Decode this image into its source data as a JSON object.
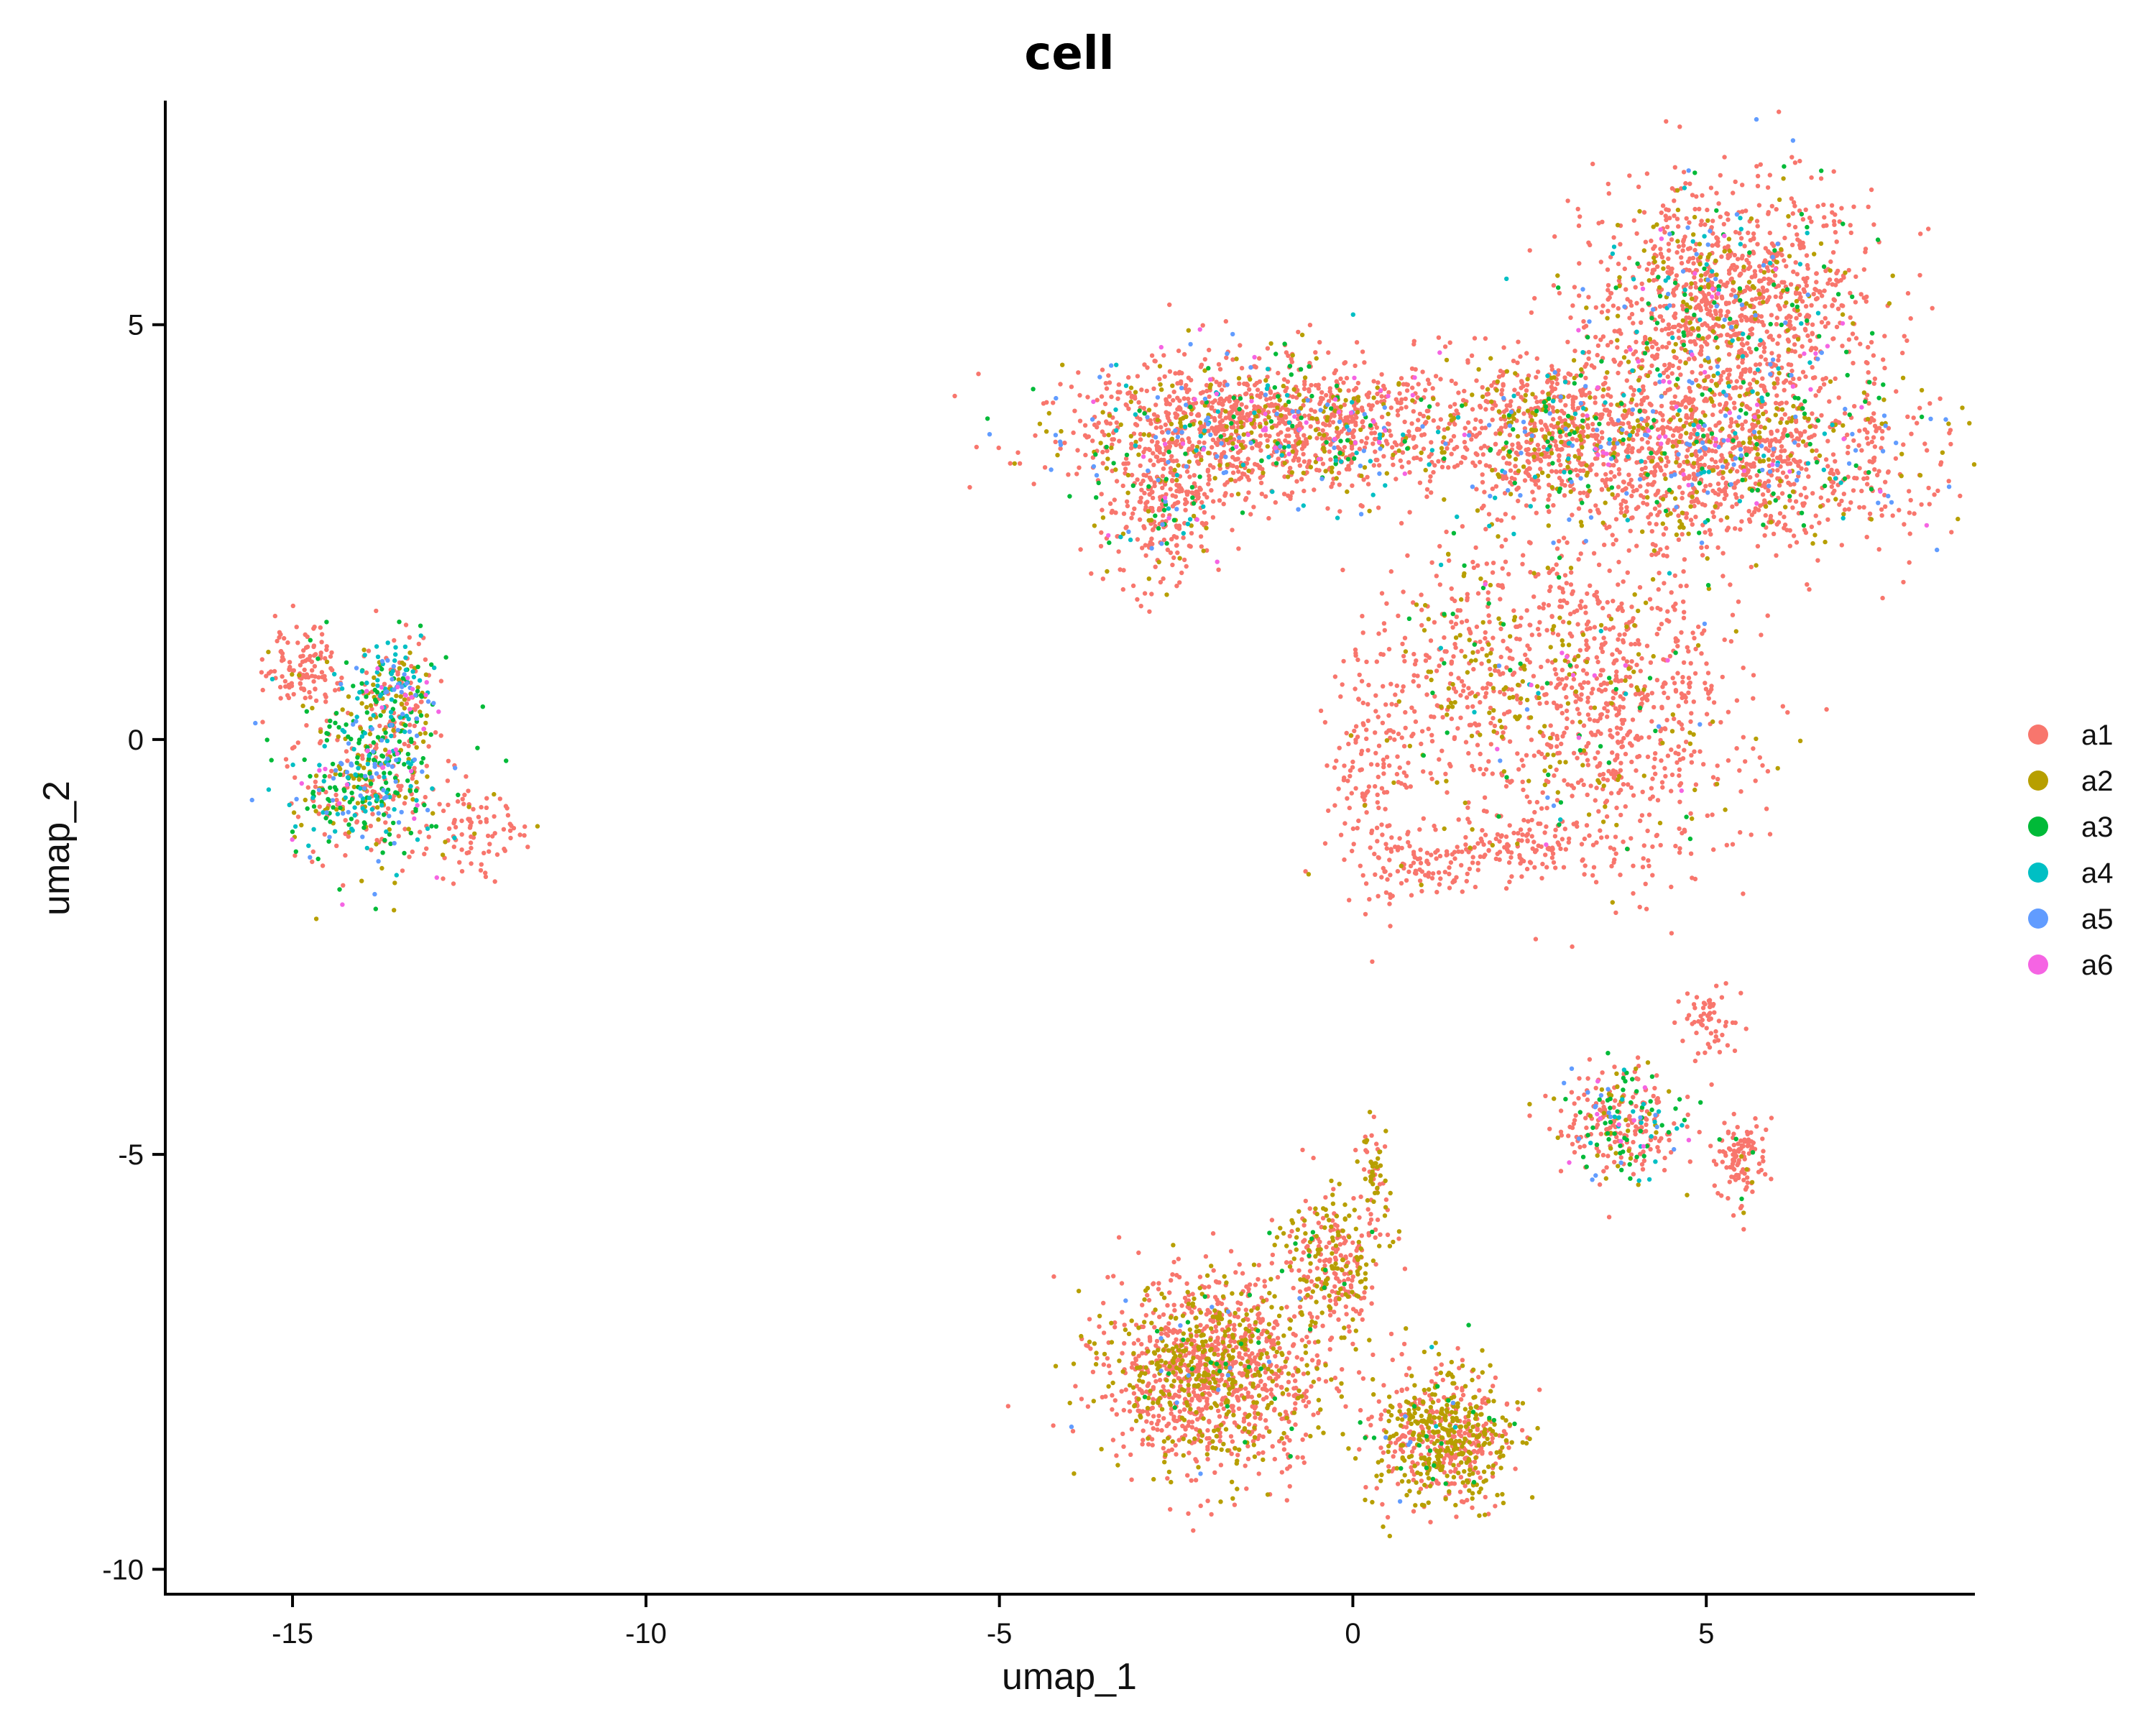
{
  "chart_data": {
    "type": "scatter",
    "title": "cell",
    "xlabel": "umap_1",
    "ylabel": "umap_2",
    "xlim": [
      -16.8,
      8.8
    ],
    "ylim": [
      -10.3,
      7.7
    ],
    "xticks": [
      -15,
      -10,
      -5,
      0,
      5
    ],
    "xtick_labels": [
      "-15",
      "-10",
      "-5",
      "0",
      "5"
    ],
    "yticks": [
      -10,
      -5,
      0,
      5
    ],
    "ytick_labels": [
      "-10",
      "-5",
      "0",
      "5"
    ],
    "grid": false,
    "legend_position": "right",
    "series": [
      {
        "name": "a1",
        "color": "#F8766D"
      },
      {
        "name": "a2",
        "color": "#B79F00"
      },
      {
        "name": "a3",
        "color": "#00BA38"
      },
      {
        "name": "a4",
        "color": "#00BFC4"
      },
      {
        "name": "a5",
        "color": "#619CFF"
      },
      {
        "name": "a6",
        "color": "#F564E3"
      }
    ],
    "clusters": [
      {
        "name": "top-left-band",
        "center": [
          -1.2,
          3.8
        ],
        "spread": [
          1.9,
          0.55
        ],
        "points": 1400,
        "mix": [
          0.72,
          0.12,
          0.05,
          0.03,
          0.05,
          0.03
        ]
      },
      {
        "name": "left-lobe",
        "center": [
          -2.7,
          2.8
        ],
        "spread": [
          0.6,
          0.6
        ],
        "points": 300,
        "mix": [
          0.8,
          0.08,
          0.04,
          0.02,
          0.04,
          0.02
        ]
      },
      {
        "name": "top-right-dome",
        "center": [
          5.3,
          5.2
        ],
        "spread": [
          1.3,
          1.0
        ],
        "points": 1300,
        "mix": [
          0.76,
          0.1,
          0.05,
          0.03,
          0.04,
          0.02
        ]
      },
      {
        "name": "right-band",
        "center": [
          5.0,
          3.4
        ],
        "spread": [
          2.2,
          0.7
        ],
        "points": 1400,
        "mix": [
          0.73,
          0.12,
          0.05,
          0.03,
          0.05,
          0.02
        ]
      },
      {
        "name": "center-band",
        "center": [
          2.8,
          3.8
        ],
        "spread": [
          1.0,
          0.55
        ],
        "points": 450,
        "mix": [
          0.72,
          0.16,
          0.05,
          0.02,
          0.03,
          0.02
        ]
      },
      {
        "name": "inner-right",
        "center": [
          3.6,
          0.5
        ],
        "spread": [
          1.3,
          1.3
        ],
        "points": 900,
        "mix": [
          0.82,
          0.12,
          0.03,
          0.01,
          0.01,
          0.01
        ]
      },
      {
        "name": "inner-mid",
        "center": [
          1.6,
          0.8
        ],
        "spread": [
          0.7,
          1.1
        ],
        "points": 250,
        "mix": [
          0.6,
          0.35,
          0.03,
          0.01,
          0.01,
          0.0
        ]
      },
      {
        "name": "ring-left",
        "center": [
          0.3,
          -0.3
        ],
        "spread": [
          0.4,
          1.1
        ],
        "points": 180,
        "mix": [
          0.95,
          0.05,
          0.0,
          0.0,
          0.0,
          0.0
        ]
      },
      {
        "name": "ring-bottom",
        "center": [
          2.3,
          -1.3
        ],
        "spread": [
          1.1,
          0.25
        ],
        "points": 150,
        "mix": [
          0.95,
          0.05,
          0.0,
          0.0,
          0.0,
          0.0
        ]
      },
      {
        "name": "ring-feet",
        "center": [
          1.0,
          -1.6
        ],
        "spread": [
          0.5,
          0.2
        ],
        "points": 60,
        "mix": [
          1.0,
          0.0,
          0.0,
          0.0,
          0.0,
          0.0
        ]
      },
      {
        "name": "left-island-core",
        "center": [
          -14.0,
          -0.5
        ],
        "spread": [
          0.7,
          0.7
        ],
        "points": 500,
        "mix": [
          0.3,
          0.15,
          0.25,
          0.15,
          0.12,
          0.03
        ]
      },
      {
        "name": "left-island-top",
        "center": [
          -13.5,
          0.6
        ],
        "spread": [
          0.35,
          0.45
        ],
        "points": 220,
        "mix": [
          0.3,
          0.2,
          0.15,
          0.2,
          0.1,
          0.05
        ]
      },
      {
        "name": "left-island-cap",
        "center": [
          -14.9,
          0.9
        ],
        "spread": [
          0.35,
          0.35
        ],
        "points": 120,
        "mix": [
          0.95,
          0.03,
          0.02,
          0.0,
          0.0,
          0.0
        ]
      },
      {
        "name": "left-island-tail",
        "center": [
          -12.5,
          -1.1
        ],
        "spread": [
          0.45,
          0.35
        ],
        "points": 90,
        "mix": [
          0.95,
          0.05,
          0.0,
          0.0,
          0.0,
          0.0
        ]
      },
      {
        "name": "bottom-left-mass",
        "center": [
          -2.0,
          -7.6
        ],
        "spread": [
          1.05,
          0.75
        ],
        "points": 1300,
        "mix": [
          0.67,
          0.3,
          0.02,
          0.0,
          0.01,
          0.0
        ]
      },
      {
        "name": "bottom-neck",
        "center": [
          -0.3,
          -6.3
        ],
        "spread": [
          0.5,
          0.6
        ],
        "points": 300,
        "mix": [
          0.6,
          0.38,
          0.02,
          0.0,
          0.0,
          0.0
        ]
      },
      {
        "name": "bottom-spike",
        "center": [
          0.3,
          -5.2
        ],
        "spread": [
          0.12,
          0.4
        ],
        "points": 60,
        "mix": [
          0.4,
          0.6,
          0.0,
          0.0,
          0.0,
          0.0
        ]
      },
      {
        "name": "bottom-right-mass",
        "center": [
          1.3,
          -8.4
        ],
        "spread": [
          0.65,
          0.55
        ],
        "points": 650,
        "mix": [
          0.5,
          0.45,
          0.03,
          0.01,
          0.01,
          0.0
        ]
      },
      {
        "name": "small-right-core",
        "center": [
          3.8,
          -4.6
        ],
        "spread": [
          0.6,
          0.45
        ],
        "points": 300,
        "mix": [
          0.6,
          0.1,
          0.12,
          0.1,
          0.05,
          0.03
        ]
      },
      {
        "name": "small-right-blob",
        "center": [
          5.5,
          -5.1
        ],
        "spread": [
          0.25,
          0.35
        ],
        "points": 110,
        "mix": [
          0.95,
          0.03,
          0.02,
          0.0,
          0.0,
          0.0
        ]
      },
      {
        "name": "small-right-arm",
        "center": [
          5.0,
          -3.4
        ],
        "spread": [
          0.3,
          0.35
        ],
        "points": 60,
        "mix": [
          1.0,
          0.0,
          0.0,
          0.0,
          0.0,
          0.0
        ]
      }
    ]
  }
}
